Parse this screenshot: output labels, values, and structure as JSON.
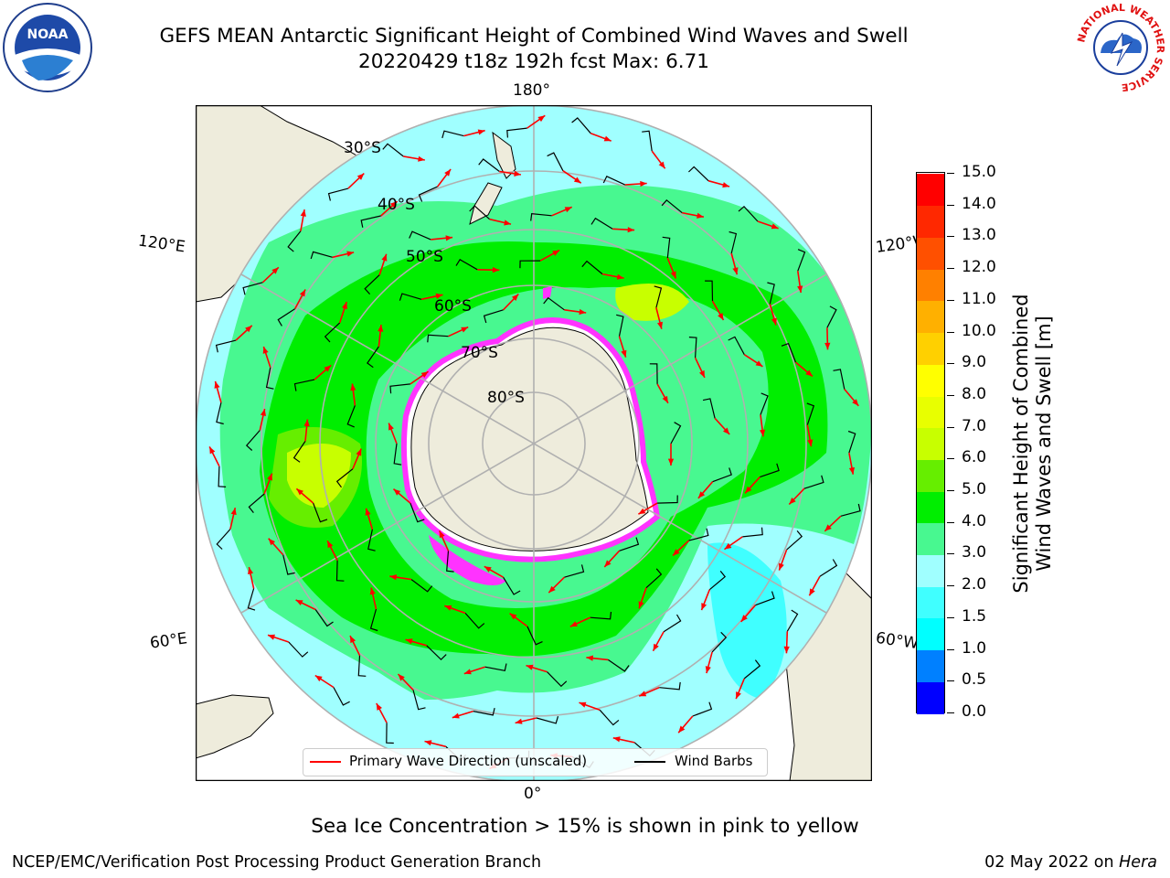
{
  "header": {
    "title_line1": "GEFS MEAN Antarctic Significant Height of Combined Wind Waves and Swell",
    "title_line2": "20220429 t18z 192h fcst   Max: 6.71"
  },
  "logos": {
    "left": "NOAA",
    "right_ring_text": "NATIONAL WEATHER SERVICE"
  },
  "map": {
    "projection": "south-polar-stereographic",
    "longitude_labels": {
      "top": "180°",
      "bottom": "0°",
      "upper_left": "120°E",
      "lower_left": "60°E",
      "upper_right": "120°W",
      "lower_right": "60°W"
    },
    "latitude_labels": [
      "30°S",
      "40°S",
      "50°S",
      "60°S",
      "70°S",
      "80°S"
    ],
    "colors": {
      "land": "#eeecdc",
      "ocean_background": "#ffffff",
      "grid": "#b0b0b0",
      "sea_ice_edge": "#ff33ff",
      "wave_arrow": "#ff0000",
      "wind_barb": "#000000"
    }
  },
  "colorbar": {
    "title_line1": "Significant Height of Combined",
    "title_line2": "Wind Waves and Swell [m]",
    "tick_labels": [
      "0.0",
      "0.5",
      "1.0",
      "1.5",
      "2.0",
      "3.0",
      "4.0",
      "5.0",
      "6.0",
      "7.0",
      "8.0",
      "9.0",
      "10.0",
      "11.0",
      "12.0",
      "13.0",
      "14.0",
      "15.0"
    ],
    "segment_colors": [
      "#0000ff",
      "#0080ff",
      "#00ffff",
      "#40ffff",
      "#a0ffff",
      "#48f890",
      "#00ee00",
      "#66ee00",
      "#c8ff00",
      "#e8ff00",
      "#ffff00",
      "#ffd000",
      "#ffb000",
      "#ff8000",
      "#ff5000",
      "#ff2800",
      "#ff0000"
    ]
  },
  "legend": {
    "primary_wave": "Primary Wave Direction (unscaled)",
    "wind_barbs": "Wind Barbs"
  },
  "note": "Sea Ice Concentration > 15% is shown in pink to yellow",
  "footer": {
    "left": "NCEP/EMC/Verification Post Processing Product Generation Branch",
    "right_prefix": "02 May 2022 on ",
    "right_italic": "Hera"
  }
}
